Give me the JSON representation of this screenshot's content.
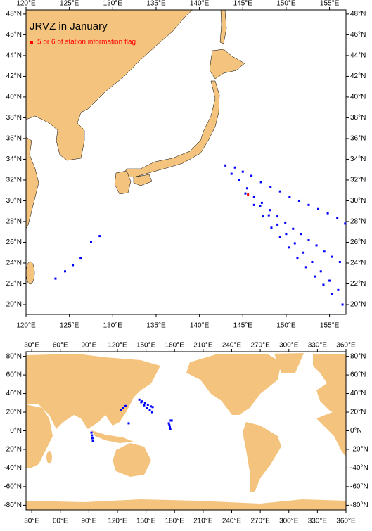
{
  "chart_data": [
    {
      "type": "map",
      "title": "JRVZ in January",
      "xlim": [
        120,
        156.9
      ],
      "ylim": [
        19.05,
        48.4
      ],
      "xticks": [
        {
          "value": 120,
          "label": "120°E"
        },
        {
          "value": 125,
          "label": "125°E"
        },
        {
          "value": 130,
          "label": "130°E"
        },
        {
          "value": 135,
          "label": "135°E"
        },
        {
          "value": 140,
          "label": "140°E"
        },
        {
          "value": 145,
          "label": "145°E"
        },
        {
          "value": 150,
          "label": "150°E"
        },
        {
          "value": 155,
          "label": "155°E"
        }
      ],
      "yticks": [
        {
          "value": 20,
          "label": "20°N"
        },
        {
          "value": 22,
          "label": "22°N"
        },
        {
          "value": 24,
          "label": "24°N"
        },
        {
          "value": 26,
          "label": "26°N"
        },
        {
          "value": 28,
          "label": "28°N"
        },
        {
          "value": 30,
          "label": "30°N"
        },
        {
          "value": 32,
          "label": "32°N"
        },
        {
          "value": 34,
          "label": "34°N"
        },
        {
          "value": 36,
          "label": "36°N"
        },
        {
          "value": 38,
          "label": "38°N"
        },
        {
          "value": 40,
          "label": "40°N"
        },
        {
          "value": 42,
          "label": "42°N"
        },
        {
          "value": 44,
          "label": "44°N"
        },
        {
          "value": 46,
          "label": "46°N"
        },
        {
          "value": 48,
          "label": "48°N"
        }
      ],
      "series": [
        {
          "name": "5 or 6 of station information flag",
          "color": "#ff0000",
          "x": [
            145.6
          ],
          "y": [
            30.6
          ]
        },
        {
          "color": "#0000ff",
          "x": [
            123.4,
            124.5,
            125.4,
            126.3,
            127.5,
            128.5,
            144.1,
            145.0,
            146.0,
            147.1,
            148.2,
            149.3,
            150.4,
            151.5,
            152.6,
            153.7,
            154.8,
            155.9,
            156.8,
            143.0,
            143.7,
            144.6,
            145.5,
            146.3,
            147.2,
            148.1,
            149.0,
            149.9,
            150.8,
            151.7,
            152.6,
            153.5,
            154.4,
            155.3,
            156.2,
            147.0,
            148.0,
            149.0,
            150.0,
            151.0,
            152.0,
            153.0,
            154.0,
            155.0,
            156.0,
            145.3,
            146.3,
            147.3,
            148.3,
            149.3,
            150.3,
            151.3,
            152.3,
            153.3,
            154.3,
            155.3,
            156.5
          ],
          "y": [
            22.5,
            23.2,
            23.8,
            24.5,
            26.0,
            26.6,
            33.2,
            32.8,
            32.4,
            31.8,
            31.3,
            30.9,
            30.4,
            30.0,
            29.6,
            29.2,
            28.8,
            28.3,
            27.8,
            33.4,
            32.6,
            32.0,
            31.2,
            30.4,
            29.8,
            29.1,
            28.5,
            27.9,
            27.3,
            26.8,
            26.2,
            25.7,
            25.1,
            24.6,
            24.1,
            29.5,
            28.6,
            27.7,
            26.8,
            25.9,
            25.0,
            24.1,
            23.2,
            22.3,
            21.4,
            30.7,
            29.6,
            28.5,
            27.4,
            26.5,
            25.5,
            24.5,
            23.6,
            22.7,
            21.9,
            21.0,
            20.0
          ]
        }
      ]
    },
    {
      "type": "map",
      "xlim": [
        24,
        360
      ],
      "ylim": [
        -85,
        85
      ],
      "xticks": [
        {
          "value": 30,
          "label": "30°E"
        },
        {
          "value": 60,
          "label": "60°E"
        },
        {
          "value": 90,
          "label": "90°E"
        },
        {
          "value": 120,
          "label": "120°E"
        },
        {
          "value": 150,
          "label": "150°E"
        },
        {
          "value": 180,
          "label": "180°E"
        },
        {
          "value": 210,
          "label": "210°E"
        },
        {
          "value": 240,
          "label": "240°E"
        },
        {
          "value": 270,
          "label": "270°E"
        },
        {
          "value": 300,
          "label": "300°E"
        },
        {
          "value": 330,
          "label": "330°E"
        },
        {
          "value": 360,
          "label": "360°E"
        }
      ],
      "yticks": [
        {
          "value": -80,
          "label": "-80°N"
        },
        {
          "value": -60,
          "label": "-60°N"
        },
        {
          "value": -40,
          "label": "-40°N"
        },
        {
          "value": -20,
          "label": "-20°N"
        },
        {
          "value": 0,
          "label": "0°N"
        },
        {
          "value": 20,
          "label": "20°N"
        },
        {
          "value": 40,
          "label": "40°N"
        },
        {
          "value": 60,
          "label": "60°N"
        },
        {
          "value": 80,
          "label": "80°N"
        }
      ],
      "series": [
        {
          "color": "#0000ff",
          "x": [
            143,
            146,
            149,
            152,
            155,
            157,
            145,
            148,
            151,
            154,
            156.5,
            123.5,
            126,
            128.5,
            92.7,
            93.2,
            93.7,
            94.2,
            174,
            174.5,
            175,
            175.5,
            131.8,
            176,
            177
          ],
          "y": [
            33.4,
            31.6,
            29.8,
            28,
            26.2,
            25.5,
            30.7,
            27.4,
            24.5,
            21.9,
            20,
            22.5,
            24.5,
            26.6,
            -2,
            -5,
            -8,
            -11,
            8,
            6,
            4,
            2,
            8,
            11,
            11
          ]
        }
      ]
    }
  ]
}
